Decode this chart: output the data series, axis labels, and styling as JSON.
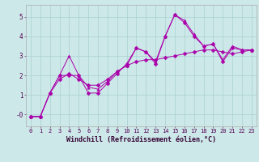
{
  "xlabel": "Windchill (Refroidissement éolien,°C)",
  "background_color": "#cce8e8",
  "line_color": "#aa00aa",
  "series1_x": [
    0,
    1,
    2,
    3,
    4,
    5,
    6,
    7,
    8,
    9,
    10,
    11,
    12,
    13,
    14,
    15,
    16,
    17,
    18,
    19,
    20,
    21,
    22,
    23
  ],
  "series1_y": [
    -0.1,
    -0.1,
    1.1,
    2.0,
    2.0,
    2.0,
    1.1,
    1.1,
    1.6,
    2.1,
    2.6,
    3.4,
    3.2,
    2.6,
    4.0,
    5.1,
    4.7,
    4.0,
    3.5,
    3.6,
    2.7,
    3.4,
    3.3,
    3.3
  ],
  "series2_x": [
    0,
    1,
    2,
    3,
    4,
    5,
    6,
    7,
    8,
    9,
    10,
    11,
    12,
    13,
    14,
    15,
    16,
    17,
    18,
    19,
    20,
    21,
    22,
    23
  ],
  "series2_y": [
    -0.1,
    -0.1,
    1.1,
    2.0,
    3.0,
    2.0,
    1.4,
    1.3,
    1.7,
    2.2,
    2.5,
    3.4,
    3.2,
    2.7,
    4.0,
    5.1,
    4.8,
    4.1,
    3.5,
    3.6,
    2.8,
    3.5,
    3.3,
    3.3
  ],
  "series3_x": [
    0,
    1,
    2,
    3,
    4,
    5,
    6,
    7,
    8,
    9,
    10,
    11,
    12,
    13,
    14,
    15,
    16,
    17,
    18,
    19,
    20,
    21,
    22,
    23
  ],
  "series3_y": [
    -0.1,
    -0.1,
    1.1,
    1.8,
    2.1,
    1.8,
    1.5,
    1.5,
    1.8,
    2.2,
    2.5,
    2.7,
    2.8,
    2.8,
    2.9,
    3.0,
    3.1,
    3.2,
    3.3,
    3.3,
    3.2,
    3.1,
    3.2,
    3.3
  ],
  "ylim": [
    -0.6,
    5.6
  ],
  "xlim": [
    -0.5,
    23.5
  ],
  "ytick_labels": [
    "-0",
    "1",
    "2",
    "3",
    "4",
    "5"
  ],
  "ytick_vals": [
    0,
    1,
    2,
    3,
    4,
    5
  ],
  "xticks": [
    0,
    1,
    2,
    3,
    4,
    5,
    6,
    7,
    8,
    9,
    10,
    11,
    12,
    13,
    14,
    15,
    16,
    17,
    18,
    19,
    20,
    21,
    22,
    23
  ],
  "grid_color": "#aad0d0",
  "marker1": "D",
  "marker2": "^",
  "marker3": "D",
  "xlabel_fontsize": 6.0,
  "tick_fontsize": 5.0
}
